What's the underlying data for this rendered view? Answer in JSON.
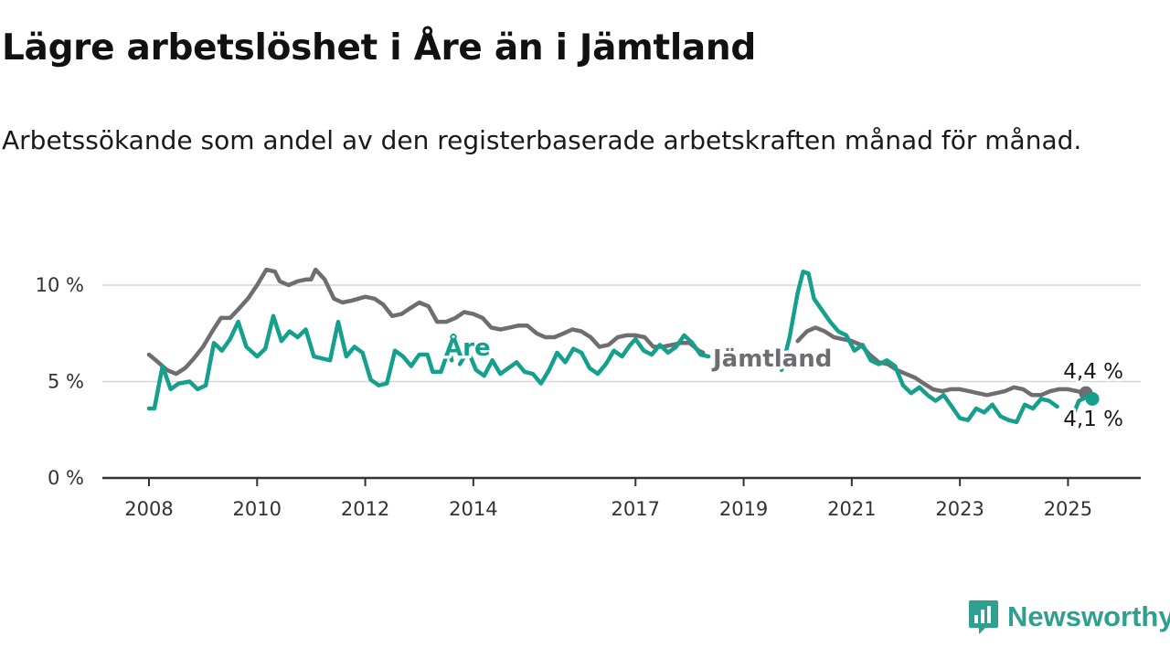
{
  "header": {
    "title": "Lägre arbetslöshet i Åre än i Jämtland",
    "subtitle": "Arbetssökande som andel av den registerbaserade arbetskraften månad för månad."
  },
  "brand": {
    "name": "Newsworthy",
    "icon": "newsworthy-logo-icon",
    "color": "#2f9f8f"
  },
  "chart_data": {
    "type": "line",
    "y_ticks": [
      {
        "value": 0,
        "label": "0 %"
      },
      {
        "value": 5,
        "label": "5 %"
      },
      {
        "value": 10,
        "label": "10 %"
      }
    ],
    "x_ticks": [
      {
        "value": 2008.0,
        "label": "2008"
      },
      {
        "value": 2010.0,
        "label": "2010"
      },
      {
        "value": 2012.0,
        "label": "2012"
      },
      {
        "value": 2014.0,
        "label": "2014"
      },
      {
        "value": 2017.0,
        "label": "2017"
      },
      {
        "value": 2019.0,
        "label": "2019"
      },
      {
        "value": 2021.0,
        "label": "2021"
      },
      {
        "value": 2023.0,
        "label": "2023"
      },
      {
        "value": 2025.0,
        "label": "2025"
      }
    ],
    "xlim": [
      2008.0,
      2025.5
    ],
    "ylim": [
      0,
      10.8
    ],
    "grid": "horizontal",
    "series": [
      {
        "name": "Jämtland",
        "color": "#6d6d72",
        "end_label": "4,4 %",
        "points": [
          [
            2008.0,
            6.4
          ],
          [
            2008.17,
            6.0
          ],
          [
            2008.33,
            5.6
          ],
          [
            2008.5,
            5.4
          ],
          [
            2008.67,
            5.7
          ],
          [
            2008.83,
            6.2
          ],
          [
            2009.0,
            6.8
          ],
          [
            2009.17,
            7.6
          ],
          [
            2009.33,
            8.3
          ],
          [
            2009.5,
            8.3
          ],
          [
            2009.67,
            8.8
          ],
          [
            2009.83,
            9.3
          ],
          [
            2010.0,
            10.0
          ],
          [
            2010.17,
            10.8
          ],
          [
            2010.33,
            10.7
          ],
          [
            2010.42,
            10.2
          ],
          [
            2010.58,
            10.0
          ],
          [
            2010.75,
            10.2
          ],
          [
            2010.92,
            10.3
          ],
          [
            2011.0,
            10.3
          ],
          [
            2011.08,
            10.8
          ],
          [
            2011.25,
            10.3
          ],
          [
            2011.42,
            9.3
          ],
          [
            2011.58,
            9.1
          ],
          [
            2011.75,
            9.2
          ],
          [
            2012.0,
            9.4
          ],
          [
            2012.17,
            9.3
          ],
          [
            2012.33,
            9.0
          ],
          [
            2012.5,
            8.4
          ],
          [
            2012.67,
            8.5
          ],
          [
            2012.83,
            8.8
          ],
          [
            2013.0,
            9.1
          ],
          [
            2013.17,
            8.9
          ],
          [
            2013.33,
            8.1
          ],
          [
            2013.5,
            8.1
          ],
          [
            2013.67,
            8.3
          ],
          [
            2013.83,
            8.6
          ],
          [
            2014.0,
            8.5
          ],
          [
            2014.17,
            8.3
          ],
          [
            2014.33,
            7.8
          ],
          [
            2014.5,
            7.7
          ],
          [
            2014.67,
            7.8
          ],
          [
            2014.83,
            7.9
          ],
          [
            2015.0,
            7.9
          ],
          [
            2015.17,
            7.5
          ],
          [
            2015.33,
            7.3
          ],
          [
            2015.5,
            7.3
          ],
          [
            2015.67,
            7.5
          ],
          [
            2015.83,
            7.7
          ],
          [
            2016.0,
            7.6
          ],
          [
            2016.17,
            7.3
          ],
          [
            2016.33,
            6.8
          ],
          [
            2016.5,
            6.9
          ],
          [
            2016.67,
            7.3
          ],
          [
            2016.83,
            7.4
          ],
          [
            2017.0,
            7.4
          ],
          [
            2017.17,
            7.3
          ],
          [
            2017.33,
            6.8
          ],
          [
            2017.5,
            6.8
          ],
          [
            2017.67,
            6.9
          ],
          [
            2017.83,
            7.0
          ],
          [
            2018.0,
            7.0
          ],
          [
            2018.17,
            6.6
          ],
          [
            2018.25,
            6.5
          ]
        ],
        "points_2": [
          [
            2020.0,
            7.1
          ],
          [
            2020.17,
            7.6
          ],
          [
            2020.33,
            7.8
          ],
          [
            2020.5,
            7.6
          ],
          [
            2020.67,
            7.3
          ],
          [
            2020.83,
            7.2
          ],
          [
            2021.0,
            7.1
          ],
          [
            2021.17,
            6.9
          ],
          [
            2021.33,
            6.4
          ],
          [
            2021.5,
            6.0
          ],
          [
            2021.67,
            5.9
          ],
          [
            2021.83,
            5.6
          ],
          [
            2022.0,
            5.4
          ],
          [
            2022.17,
            5.2
          ],
          [
            2022.33,
            4.9
          ],
          [
            2022.5,
            4.6
          ],
          [
            2022.67,
            4.5
          ],
          [
            2022.83,
            4.6
          ],
          [
            2023.0,
            4.6
          ],
          [
            2023.17,
            4.5
          ],
          [
            2023.33,
            4.4
          ],
          [
            2023.5,
            4.3
          ],
          [
            2023.67,
            4.4
          ],
          [
            2023.83,
            4.5
          ],
          [
            2024.0,
            4.7
          ],
          [
            2024.17,
            4.6
          ],
          [
            2024.33,
            4.3
          ],
          [
            2024.5,
            4.3
          ],
          [
            2024.67,
            4.5
          ],
          [
            2024.83,
            4.6
          ],
          [
            2025.0,
            4.6
          ],
          [
            2025.17,
            4.5
          ],
          [
            2025.33,
            4.4
          ]
        ]
      },
      {
        "name": "Åre",
        "color": "#14a08c",
        "end_label": "4,1 %",
        "points": [
          [
            2008.0,
            3.6
          ],
          [
            2008.1,
            3.6
          ],
          [
            2008.25,
            5.8
          ],
          [
            2008.4,
            4.6
          ],
          [
            2008.55,
            4.9
          ],
          [
            2008.75,
            5.0
          ],
          [
            2008.9,
            4.6
          ],
          [
            2009.05,
            4.8
          ],
          [
            2009.2,
            7.0
          ],
          [
            2009.35,
            6.6
          ],
          [
            2009.5,
            7.2
          ],
          [
            2009.65,
            8.1
          ],
          [
            2009.8,
            6.8
          ],
          [
            2010.0,
            6.3
          ],
          [
            2010.15,
            6.7
          ],
          [
            2010.3,
            8.4
          ],
          [
            2010.45,
            7.1
          ],
          [
            2010.6,
            7.6
          ],
          [
            2010.75,
            7.3
          ],
          [
            2010.9,
            7.7
          ],
          [
            2011.05,
            6.3
          ],
          [
            2011.2,
            6.2
          ],
          [
            2011.35,
            6.1
          ],
          [
            2011.5,
            8.1
          ],
          [
            2011.65,
            6.3
          ],
          [
            2011.8,
            6.8
          ],
          [
            2011.95,
            6.5
          ],
          [
            2012.1,
            5.1
          ],
          [
            2012.25,
            4.8
          ],
          [
            2012.4,
            4.9
          ],
          [
            2012.55,
            6.6
          ],
          [
            2012.7,
            6.3
          ],
          [
            2012.85,
            5.8
          ],
          [
            2013.0,
            6.4
          ],
          [
            2013.15,
            6.4
          ],
          [
            2013.25,
            5.5
          ],
          [
            2013.4,
            5.5
          ],
          [
            2013.55,
            6.7
          ],
          [
            2013.6,
            6.1
          ]
        ],
        "points_2": [
          [
            2013.75,
            5.9
          ],
          [
            2013.9,
            6.6
          ],
          [
            2014.05,
            5.6
          ],
          [
            2014.2,
            5.3
          ],
          [
            2014.35,
            6.1
          ],
          [
            2014.5,
            5.4
          ],
          [
            2014.65,
            5.7
          ],
          [
            2014.8,
            6.0
          ],
          [
            2014.95,
            5.5
          ],
          [
            2015.1,
            5.4
          ],
          [
            2015.25,
            4.9
          ],
          [
            2015.4,
            5.6
          ],
          [
            2015.55,
            6.5
          ],
          [
            2015.7,
            6.0
          ],
          [
            2015.85,
            6.7
          ],
          [
            2016.0,
            6.5
          ],
          [
            2016.15,
            5.7
          ],
          [
            2016.3,
            5.4
          ],
          [
            2016.45,
            5.9
          ],
          [
            2016.6,
            6.6
          ],
          [
            2016.75,
            6.3
          ],
          [
            2016.9,
            6.9
          ],
          [
            2017.0,
            7.2
          ],
          [
            2017.15,
            6.6
          ],
          [
            2017.3,
            6.4
          ],
          [
            2017.45,
            6.9
          ],
          [
            2017.6,
            6.5
          ],
          [
            2017.75,
            6.8
          ],
          [
            2017.9,
            7.4
          ],
          [
            2018.05,
            7.0
          ],
          [
            2018.2,
            6.4
          ],
          [
            2018.35,
            6.3
          ]
        ],
        "points_3": [
          [
            2019.7,
            5.6
          ],
          [
            2019.85,
            7.3
          ],
          [
            2020.0,
            9.6
          ],
          [
            2020.1,
            10.7
          ],
          [
            2020.2,
            10.6
          ],
          [
            2020.3,
            9.3
          ],
          [
            2020.45,
            8.7
          ],
          [
            2020.6,
            8.1
          ],
          [
            2020.75,
            7.6
          ],
          [
            2020.9,
            7.4
          ],
          [
            2021.05,
            6.6
          ],
          [
            2021.2,
            6.9
          ],
          [
            2021.35,
            6.1
          ],
          [
            2021.5,
            5.9
          ],
          [
            2021.65,
            6.1
          ],
          [
            2021.8,
            5.8
          ],
          [
            2021.95,
            4.8
          ],
          [
            2022.1,
            4.4
          ],
          [
            2022.25,
            4.7
          ],
          [
            2022.4,
            4.3
          ],
          [
            2022.55,
            4.0
          ],
          [
            2022.7,
            4.3
          ],
          [
            2022.85,
            3.7
          ],
          [
            2023.0,
            3.1
          ],
          [
            2023.15,
            3.0
          ],
          [
            2023.3,
            3.6
          ],
          [
            2023.45,
            3.4
          ],
          [
            2023.6,
            3.8
          ],
          [
            2023.75,
            3.2
          ],
          [
            2023.9,
            3.0
          ],
          [
            2024.05,
            2.9
          ],
          [
            2024.2,
            3.8
          ],
          [
            2024.35,
            3.6
          ],
          [
            2024.5,
            4.1
          ],
          [
            2024.65,
            4.0
          ],
          [
            2024.8,
            3.7
          ]
        ],
        "points_4": [
          [
            2025.1,
            3.3
          ],
          [
            2025.2,
            4.0
          ],
          [
            2025.35,
            4.2
          ],
          [
            2025.45,
            4.1
          ]
        ]
      }
    ]
  }
}
